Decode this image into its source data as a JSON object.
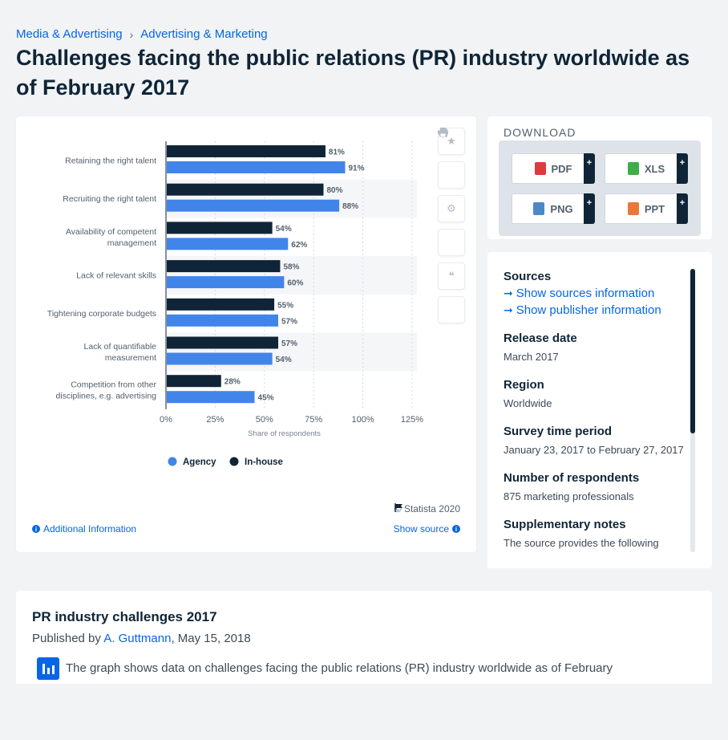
{
  "breadcrumb": {
    "item1": "Media & Advertising",
    "separator": "›",
    "item2": "Advertising & Marketing"
  },
  "page_title": "Challenges facing the public relations (PR) industry worldwide as of February 2017",
  "chart_footer": {
    "copyright": "© Statista 2020",
    "additional_info": "Additional Information",
    "show_source": "Show source"
  },
  "download": {
    "title": "DOWNLOAD",
    "buttons": [
      {
        "label": "PDF",
        "icon": "pdf-icon",
        "color": "#e0393e"
      },
      {
        "label": "XLS",
        "icon": "xls-icon",
        "color": "#3fae49"
      },
      {
        "label": "PNG",
        "icon": "png-icon",
        "color": "#4a88c7"
      },
      {
        "label": "PPT",
        "icon": "ppt-icon",
        "color": "#e8783a"
      }
    ],
    "plus": "+"
  },
  "details": {
    "sources_label": "Sources",
    "show_sources": "Show sources information",
    "show_publisher": "Show publisher information",
    "release_label": "Release date",
    "release_value": "March 2017",
    "region_label": "Region",
    "region_value": "Worldwide",
    "survey_label": "Survey time period",
    "survey_value": "January 23, 2017 to February 27, 2017",
    "respondents_label": "Number of respondents",
    "respondents_value": "875 marketing professionals",
    "notes_label": "Supplementary notes",
    "notes_value": "The source provides the following"
  },
  "description": {
    "title": "PR industry challenges 2017",
    "published_prefix": "Published by",
    "author": "A. Guttmann",
    "published_date": ", May 15, 2018",
    "text": "The graph shows data on challenges facing the public relations (PR) industry worldwide as of February"
  },
  "colors": {
    "agency": "#4285e9",
    "inhouse": "#0f2537",
    "accent": "#0666e5"
  },
  "chart_data": {
    "type": "bar",
    "orientation": "horizontal",
    "categories": [
      [
        "Retaining the right talent"
      ],
      [
        "Recruiting the right talent"
      ],
      [
        "Availability of competent",
        "management"
      ],
      [
        "Lack of relevant skills"
      ],
      [
        "Tightening corporate budgets"
      ],
      [
        "Lack of quantifiable",
        "measurement"
      ],
      [
        "Competition from other",
        "disciplines, e.g. advertising"
      ]
    ],
    "series": [
      {
        "name": "In-house",
        "color": "#0f2537",
        "values": [
          81,
          80,
          54,
          58,
          55,
          57,
          28
        ]
      },
      {
        "name": "Agency",
        "color": "#4285e9",
        "values": [
          91,
          88,
          62,
          60,
          57,
          54,
          45
        ]
      }
    ],
    "value_suffix": "%",
    "xlabel": "Share of respondents",
    "xticks": [
      "0%",
      "25%",
      "50%",
      "75%",
      "100%",
      "125%"
    ],
    "xlim": [
      0,
      125
    ],
    "grid": true,
    "legend": [
      {
        "name": "Agency",
        "color": "#4285e9"
      },
      {
        "name": "In-house",
        "color": "#0f2537"
      }
    ],
    "legend_position": "bottom"
  }
}
